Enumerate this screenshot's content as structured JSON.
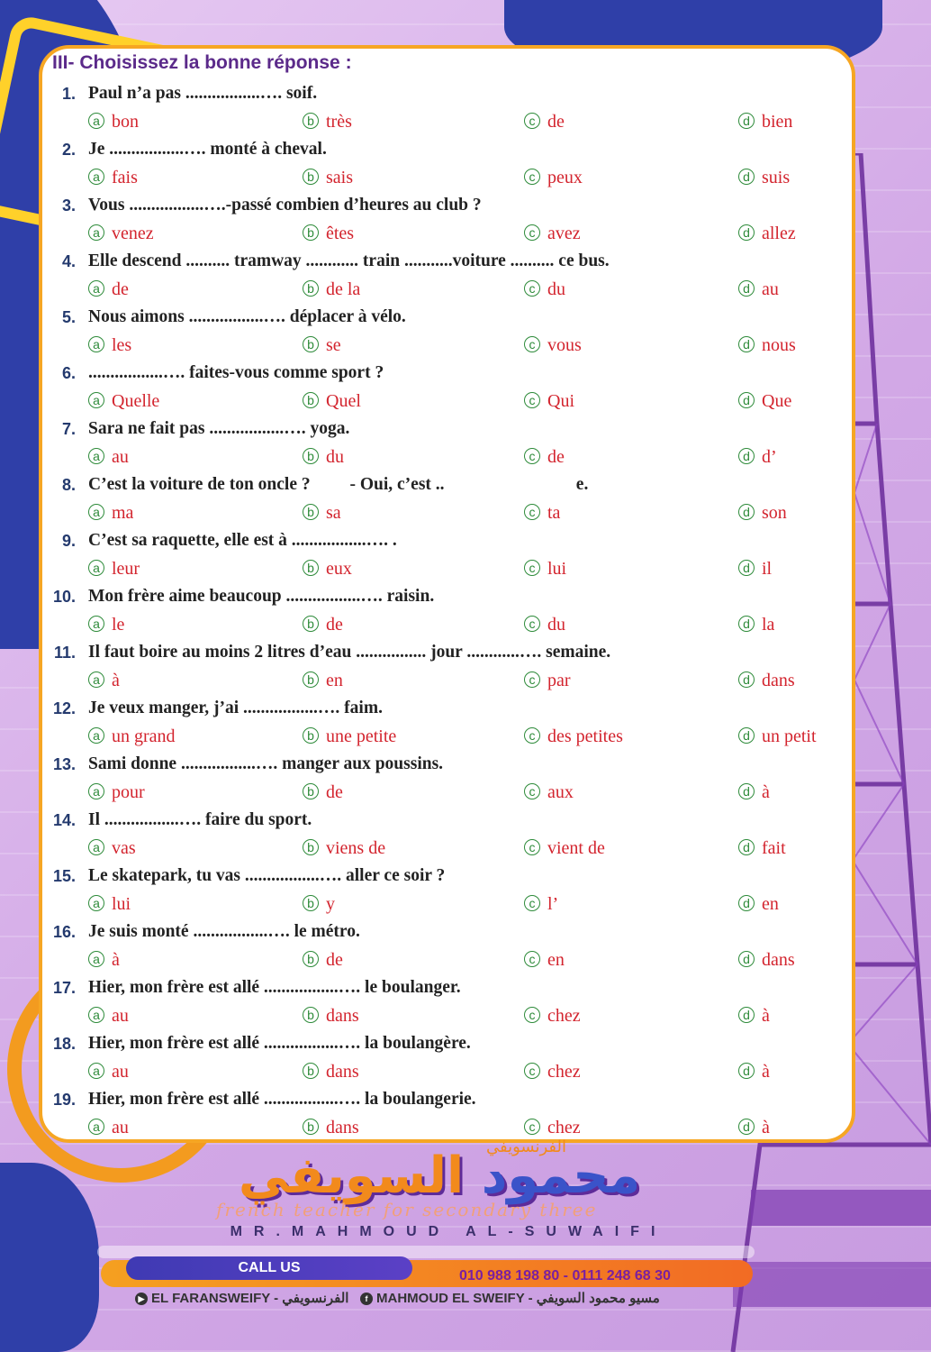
{
  "section_title": "III- Choisissez la bonne réponse :",
  "questions": [
    {
      "num": "1.",
      "text": "Paul n’a pas .................…. soif.",
      "options": [
        "bon",
        "très",
        "de",
        "bien"
      ]
    },
    {
      "num": "2.",
      "text": "Je .................…. monté à cheval.",
      "options": [
        "fais",
        "sais",
        "peux",
        "suis"
      ]
    },
    {
      "num": "3.",
      "text": "Vous .................….-passé combien d’heures au club ?",
      "options": [
        "venez",
        "êtes",
        "avez",
        "allez"
      ]
    },
    {
      "num": "4.",
      "text": "Elle descend .......... tramway ............ train ...........voiture .......... ce bus.",
      "options": [
        "de",
        "de la",
        "du",
        "au"
      ]
    },
    {
      "num": "5.",
      "text": "Nous aimons .................…. déplacer à vélo.",
      "options": [
        "les",
        "se",
        "vous",
        "nous"
      ]
    },
    {
      "num": "6.",
      "text": ".................…. faites-vous comme sport ?",
      "options": [
        "Quelle",
        "Quel",
        "Qui",
        "Que"
      ]
    },
    {
      "num": "7.",
      "text": "Sara ne fait pas .................…. yoga.",
      "options": [
        "au",
        "du",
        "de",
        "d’"
      ]
    },
    {
      "num": "8.",
      "text": "C’est la voiture de ton oncle ?         - Oui, c’est ..                              e.",
      "options": [
        "ma",
        "sa",
        "ta",
        "son"
      ]
    },
    {
      "num": "9.",
      "text": "C’est sa raquette, elle est à .................…. .",
      "options": [
        "leur",
        "eux",
        "lui",
        "il"
      ]
    },
    {
      "num": "10.",
      "text": "Mon frère aime beaucoup .................…. raisin.",
      "options": [
        "le",
        "de",
        "du",
        "la"
      ]
    },
    {
      "num": "11.",
      "text": "Il faut boire au moins 2 litres d’eau ................ jour ............…. semaine.",
      "options": [
        "à",
        "en",
        "par",
        "dans"
      ]
    },
    {
      "num": "12.",
      "text": "Je veux manger, j’ai .................…. faim.",
      "options": [
        "un grand",
        "une petite",
        "des petites",
        "un petit"
      ]
    },
    {
      "num": "13.",
      "text": "Sami donne .................…. manger aux poussins.",
      "options": [
        "pour",
        "de",
        "aux",
        "à"
      ]
    },
    {
      "num": "14.",
      "text": "Il .................…. faire du sport.",
      "options": [
        "vas",
        "viens de",
        "vient de",
        "fait"
      ]
    },
    {
      "num": "15.",
      "text": "Le skatepark, tu vas .................…. aller ce soir ?",
      "options": [
        "lui",
        "y",
        "l’",
        "en"
      ]
    },
    {
      "num": "16.",
      "text": "Je suis monté .................…. le métro.",
      "options": [
        "à",
        "de",
        "en",
        "dans"
      ]
    },
    {
      "num": "17.",
      "text": "Hier, mon frère est allé .................…. le boulanger.",
      "options": [
        "au",
        "dans",
        "chez",
        "à"
      ]
    },
    {
      "num": "18.",
      "text": "Hier, mon frère est allé .................…. la boulangère.",
      "options": [
        "au",
        "dans",
        "chez",
        "à"
      ]
    },
    {
      "num": "19.",
      "text": "Hier, mon frère est allé .................…. la boulangerie.",
      "options": [
        "au",
        "dans",
        "chez",
        "à"
      ]
    }
  ],
  "option_letters": [
    "a",
    "b",
    "c",
    "d"
  ],
  "footer": {
    "brand_arabic_small": "الفرنسويفي",
    "brand_arabic_part1": "محمود",
    "brand_arabic_part2": "السويفي",
    "script_line": "french teacher for secondary three",
    "brand_latin": "MR.MAHMOUD AL-SUWAIFI",
    "call_us": "CALL US",
    "phones": "010 988 198 80 - 0111 248 68 30",
    "social_youtube": "EL FARANSWEIFY - الفرنسويفي",
    "social_facebook": "MAHMOUD EL SWEIFY - مسيو محمود السويفي"
  },
  "colors": {
    "title": "#5b2a8a",
    "options": "#d3242e",
    "bubbles": "#2e8b3a",
    "card_border": "#f6a623"
  }
}
